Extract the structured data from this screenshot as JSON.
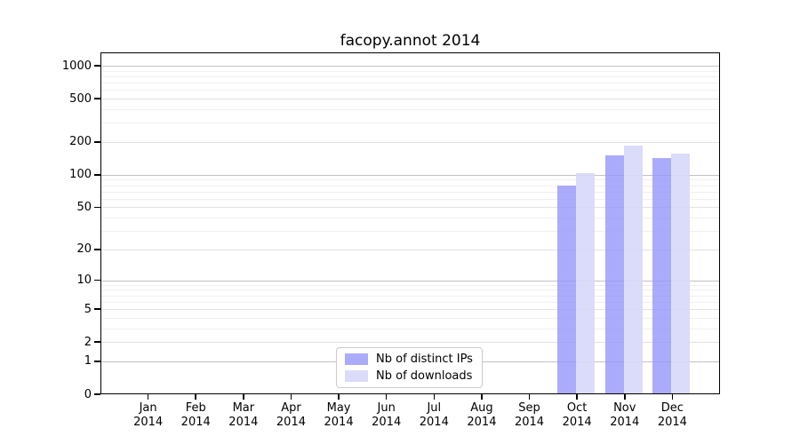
{
  "title": "facopy.annot 2014",
  "chart_data": {
    "type": "bar",
    "title": "facopy.annot 2014",
    "categories": [
      "Jan 2014",
      "Feb 2014",
      "Mar 2014",
      "Apr 2014",
      "May 2014",
      "Jun 2014",
      "Jul 2014",
      "Aug 2014",
      "Sep 2014",
      "Oct 2014",
      "Nov 2014",
      "Dec 2014"
    ],
    "month_labels": [
      "Jan",
      "Feb",
      "Mar",
      "Apr",
      "May",
      "Jun",
      "Jul",
      "Aug",
      "Sep",
      "Oct",
      "Nov",
      "Dec"
    ],
    "year_label": "2014",
    "series": [
      {
        "name": "Nb of distinct IPs",
        "color": "rgba(150,150,250,0.8)",
        "values": [
          0,
          0,
          0,
          0,
          0,
          0,
          0,
          0,
          0,
          80,
          152,
          142
        ]
      },
      {
        "name": "Nb of downloads",
        "color": "rgba(215,215,250,0.9)",
        "values": [
          0,
          0,
          0,
          0,
          0,
          0,
          0,
          0,
          0,
          103,
          185,
          156
        ]
      }
    ],
    "y_ticks": [
      0,
      1,
      2,
      5,
      10,
      20,
      50,
      100,
      200,
      500,
      1000
    ],
    "y_scale": "log1p",
    "ylim": [
      0,
      1320
    ],
    "grid": true,
    "legend_position": "lower center"
  },
  "colors": {
    "background": "#ffffff",
    "axis": "#000000",
    "text": "#000000",
    "grid_major": "#c3c3c3",
    "grid_mid": "#e2e2e2",
    "grid_minor": "#f0f0f0"
  }
}
